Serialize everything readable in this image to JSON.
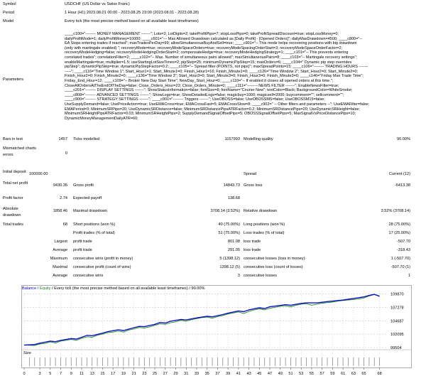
{
  "header": {
    "symbol_label": "Symbol",
    "symbol_value": "USDCHF (US Dollar vs Swiss Franc)",
    "period_label": "Period",
    "period_value": "1 Hour (H1) 2023.08.01 00:00 - 2023.08.25 23:00 (2023.08.01 - 2023.08.28)",
    "model_label": "Model",
    "model_value": "Every tick (the most precise method based on all available least timeframes)"
  },
  "parameters": {
    "label": "Parameters",
    "lines": [
      "____c100=\"-------- MONEY MANAGEMENT -------\"; Lots=3; LotDigits=2; takeProfitPips=7; stopLossPips=0; takeProfitSpreadDiscount=true; stopLossMoney=0;",
      "dailyProfitMode=1; dailyProfitMoney=10000; ____c601=\"--- Max Allowed Drawdown calculated as [Daily Profit] - [Opened Orders]\"; dailyMaxDrawdown=4500; ____c800=\"--",
      "EA Stops entering trades if reached\"; maxTradesPerDay=99; allowSimultaneousBuyAndSell=true; ____c901=\"-- This mode helps recovering positions with big drawdown",
      "(only with martingale enabled) \"; recoveryMode=true; recoveryModeSpaceOrders=true; recoveryModeSpacingOrderStart=3; recoveryModeSpaceOrderFactor=2;",
      "recoveryModeHedging=false; recoveryModeHedgingOrderStart=2; compensateHedge=true; recoveryModeHedgingStrategy=1; ____c101=\"-- This prevents entering",
      "correlated trades\"; correlationFilter=2; ____c102=\"-- Max. Number of simultaneous pairs allowed\"; maxSimultaneousPairs=8; ____c103=\"-- Martingale recovery settings\";",
      "enableMartingale=true; multiplier=1.5; useStartingLotSizeTimes=2; pipStep=25; minimumDynamicPipStep=15; maxOrders=6; ____c104=\" Dynamic pip step overrides",
      "pipStep\"; dynamicPipStep=true; dynamicPipStepFactor=0.2; ____c105=\"-- Spread filter (POINTS, not pips)\"; maxSpreadPoints=15; ____c106=\"-------- TRADING HOURS -------",
      "-----\"; ____c116=\"Time Window 1\"; Start_Hour1=1; Start_Minute1=0; Finish_Hour1=16; Finish_Minute1=0; ____c126=\"Time Window 2\"; Start_Hour2=0; Start_Minute2=0;",
      "Finish_Hour2=0; Finish_Minute2=0; ____c136=\"Time Window 3\"; Start_Hour3=0; Start_Minute3=0; Finish_Hour3=0; Finish_Minute3=0; ____c146=\"Friday Max Trade Time\";",
      "Friday_End_Hour=12; ____c109=\"-- Broker New Day Start Time\"; NewDay_Start_Hour=0; ____c110=\"-- If enabled it closes all opened orders at this time.\";",
      "CloseAllOrdersAtTheEndOfTheDay=false; Close_Orders_Hour=23; Close_Orders_Minute=0; ____c111=\"-------- NEWS FILTER -------\"; EnableNewsFilter=true;",
      "____c201=\"-------- DISPLAY SETTINGS -------\"; ShowStatusInformation=false; fontSize=8; fontName=\"Courier New\"; textColor=Black; BackgroundColor=WhiteSmoke;",
      "____c808=\"-------- ADVANCED SETTINGS -------\"; ShowLogs=true; ShowDetailedLogs=false; magicbuy=1000; magicsell=2000; buycomment=\"\"; sellcomment=\"\";",
      "____c900=\"-------- STRATEGY SETTINGS -------\"; ____c901=\"-------- Triggers -------\"; UseOBOSS=false; UseOBOSSMS=false; UseOBOSSM15=false;",
      "UseSupplyDemand=false; UsePriceAction=true; UseEMACross=true; EMACrossFast=5; EMACrossSlow=8; ____c902=\" -- Other filters and parameters --\"; UseEMAFilter=false;",
      "EMAPeriod=3; MinimumSRPips=20; UseDynamicSRDistance=false; MinimumSRDistancePipsATRFactor=0.2; MinimumSRDistancePips=20; UseDynamicSRHeight=false;",
      "MinimumSRHeightPipsATRFactor=0.03; MinimumSRHeightPips=2; SupplyDemandSignalOffsetPips=5; OBOSSSignalOffsetPips=5; MaxSignalVsPriceDistancePips=10;",
      "DynamicMoneyManagementDailyATR=60;"
    ]
  },
  "stats": {
    "bars_label": "Bars in test",
    "bars_value": "1457",
    "ticks_label": "Ticks modelled",
    "ticks_value": "1157993",
    "quality_label": "Modelling quality",
    "quality_value": "90.00%",
    "mismatched_label": "Mismatched charts errors",
    "mismatched_value": "0",
    "deposit_label": "Initial deposit",
    "deposit_value": "100000.00",
    "spread_label": "Spread",
    "spread_value": "Current (12)",
    "netprofit_label": "Total net profit",
    "netprofit_value": "9430.35",
    "grossprofit_label": "Gross profit",
    "grossprofit_value": "14843.73",
    "grossloss_label": "Gross loss",
    "grossloss_value": "-5413.38",
    "pf_label": "Profit factor",
    "pf_value": "2.74",
    "payoff_label": "Expected payoff",
    "payoff_value": "138.68",
    "absdd_label": "Absolute drawdown",
    "absdd_value": "1858.46",
    "maxdd_label": "Maximal drawdown",
    "maxdd_value": "3708.14 (3.52%)",
    "reldd_label": "Relative drawdown",
    "reldd_value": "3.52% (3708.14)",
    "trades_label": "Total trades",
    "trades_value": "68",
    "short_label": "Short positions (won %)",
    "short_value": "40 (75.00%)",
    "long_label": "Long positions (won %)",
    "long_value": "28 (75.00%)",
    "ptrades_label": "Profit trades (% of total)",
    "ptrades_value": "51 (75.00%)",
    "ltrades_label": "Loss trades (% of total)",
    "ltrades_value": "17 (25.00%)",
    "largest_label": "Largest",
    "lprofit_label": "profit trade",
    "lprofit_value": "801.08",
    "lloss_label": "loss trade",
    "lloss_value": "-507.70",
    "average_label": "Average",
    "aprofit_label": "profit trade",
    "aprofit_value": "291.05",
    "aloss_label": "loss trade",
    "aloss_value": "-318.43",
    "maximum_label": "Maximum",
    "cwins_label": "consecutive wins (profit in money)",
    "cwins_value": "5 (1398.12)",
    "closses_label": "consecutive losses (loss in money)",
    "closses_value": "1 (-507.70)",
    "maximal_label": "Maximal",
    "cprofit_label": "consecutive profit (count of wins)",
    "cprofit_value": "1398.12 (5)",
    "closs_label": "consecutive loss (count of losses)",
    "closs_value": "-507.70 (1)",
    "average2_label": "Average",
    "acwins_label": "consecutive wins",
    "acwins_value": "3",
    "aclosses_label": "consecutive losses",
    "aclosses_value": "1"
  },
  "chart": {
    "title_balance": "Balance",
    "title_sep1": " / ",
    "title_equity": "Equity",
    "title_rest": " / Every tick (the most precise method based on all available least timeframes) / 90.00%",
    "size_label": "Size",
    "colors": {
      "balance": "#1010c8",
      "equity": "#1f8a1f",
      "grid": "#c8c8c8"
    }
  },
  "chart_data": {
    "type": "line",
    "title": "Balance / Equity / Every tick (the most precise method based on all available least timeframes) / 90.00%",
    "yticks": [
      "109870",
      "107278",
      "104687",
      "102095",
      "99504"
    ],
    "ylim": [
      99504,
      110500
    ],
    "xticks": [
      "0",
      "3",
      "5",
      "7",
      "9",
      "11",
      "13",
      "15",
      "17",
      "19",
      "21",
      "23",
      "25",
      "27",
      "29",
      "31",
      "33",
      "35",
      "37",
      "39",
      "41",
      "43",
      "45",
      "47",
      "49",
      "51",
      "53",
      "55",
      "57",
      "59",
      "61",
      "63",
      "65",
      "68"
    ],
    "xlim": [
      0,
      69
    ],
    "series": [
      {
        "name": "Balance",
        "values": [
          [
            0,
            100000
          ],
          [
            2,
            100100
          ],
          [
            3,
            100350
          ],
          [
            5,
            100750
          ],
          [
            6,
            100650
          ],
          [
            7,
            100900
          ],
          [
            9,
            101250
          ],
          [
            10,
            101150
          ],
          [
            11,
            101500
          ],
          [
            12,
            101850
          ],
          [
            13,
            101800
          ],
          [
            15,
            102300
          ],
          [
            16,
            102600
          ],
          [
            18,
            102950
          ],
          [
            19,
            102800
          ],
          [
            21,
            103350
          ],
          [
            22,
            103600
          ],
          [
            23,
            103550
          ],
          [
            25,
            104000
          ],
          [
            26,
            104350
          ],
          [
            27,
            104250
          ],
          [
            28,
            104600
          ],
          [
            30,
            104950
          ],
          [
            31,
            104850
          ],
          [
            33,
            105250
          ],
          [
            35,
            105550
          ],
          [
            36,
            105450
          ],
          [
            38,
            105900
          ],
          [
            39,
            106150
          ],
          [
            41,
            106600
          ],
          [
            42,
            106450
          ],
          [
            43,
            106800
          ],
          [
            45,
            107200
          ],
          [
            46,
            107050
          ],
          [
            47,
            107400
          ],
          [
            49,
            107650
          ],
          [
            50,
            107800
          ],
          [
            51,
            107700
          ],
          [
            53,
            108050
          ],
          [
            54,
            108150
          ],
          [
            56,
            108150
          ],
          [
            58,
            108400
          ],
          [
            59,
            108500
          ],
          [
            61,
            108700
          ],
          [
            62,
            108850
          ],
          [
            63,
            109000
          ],
          [
            64,
            109150
          ],
          [
            65,
            109300
          ],
          [
            66,
            109600
          ],
          [
            67,
            109800
          ],
          [
            68,
            109430
          ]
        ]
      },
      {
        "name": "Equity",
        "values": [
          [
            0,
            100000
          ],
          [
            2,
            99900
          ],
          [
            3,
            100200
          ],
          [
            4,
            100300
          ],
          [
            5,
            100600
          ],
          [
            6,
            100400
          ],
          [
            7,
            100750
          ],
          [
            8,
            100900
          ],
          [
            9,
            101100
          ],
          [
            10,
            100900
          ],
          [
            11,
            101300
          ],
          [
            12,
            101600
          ],
          [
            13,
            101500
          ],
          [
            14,
            101900
          ],
          [
            15,
            102100
          ],
          [
            16,
            102400
          ],
          [
            17,
            102500
          ],
          [
            18,
            102700
          ],
          [
            19,
            102500
          ],
          [
            20,
            102900
          ],
          [
            21,
            103100
          ],
          [
            22,
            103400
          ],
          [
            23,
            103300
          ],
          [
            24,
            103500
          ],
          [
            25,
            103800
          ],
          [
            26,
            104100
          ],
          [
            27,
            104000
          ],
          [
            28,
            104300
          ],
          [
            29,
            104500
          ],
          [
            30,
            104800
          ],
          [
            31,
            104600
          ],
          [
            32,
            104900
          ],
          [
            33,
            105100
          ],
          [
            34,
            105300
          ],
          [
            35,
            105400
          ],
          [
            36,
            105200
          ],
          [
            37,
            105500
          ],
          [
            38,
            105700
          ],
          [
            39,
            106000
          ],
          [
            40,
            106200
          ],
          [
            41,
            106400
          ],
          [
            42,
            106100
          ],
          [
            43,
            106500
          ],
          [
            44,
            106800
          ],
          [
            45,
            107000
          ],
          [
            46,
            106800
          ],
          [
            47,
            107100
          ],
          [
            48,
            107300
          ],
          [
            49,
            107500
          ],
          [
            50,
            107600
          ],
          [
            51,
            107400
          ],
          [
            52,
            107700
          ],
          [
            53,
            107900
          ],
          [
            54,
            108000
          ],
          [
            55,
            107700
          ],
          [
            56,
            107900
          ],
          [
            57,
            108100
          ],
          [
            58,
            108200
          ],
          [
            59,
            108300
          ],
          [
            60,
            108500
          ],
          [
            61,
            108600
          ],
          [
            62,
            108700
          ],
          [
            63,
            108800
          ],
          [
            64,
            108900
          ],
          [
            65,
            109100
          ],
          [
            66,
            109500
          ],
          [
            67,
            109750
          ],
          [
            68,
            109430
          ]
        ]
      }
    ],
    "grid": true,
    "legend": "top-left"
  }
}
